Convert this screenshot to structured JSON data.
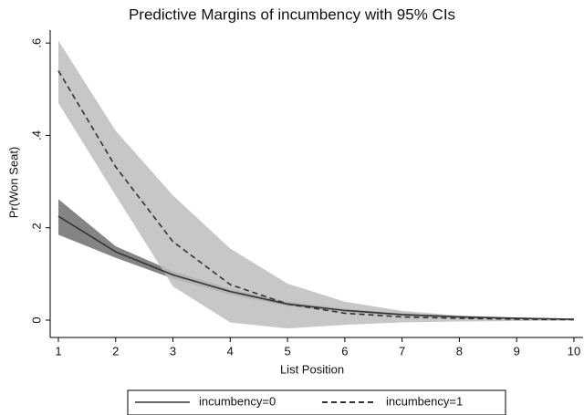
{
  "chart_data": {
    "type": "line",
    "title": "Predictive Margins of incumbency with 95% CIs",
    "x_label": "List Position",
    "y_label": "Pr(Won Seat)",
    "x": [
      1,
      2,
      3,
      4,
      5,
      6,
      7,
      8,
      9,
      10
    ],
    "series": [
      {
        "name": "incumbency=0",
        "color": "#333333",
        "legend_color": "#666666",
        "band_color": "#6e6e6e",
        "line_style": "solid",
        "values": [
          0.225,
          0.148,
          0.098,
          0.062,
          0.035,
          0.021,
          0.012,
          0.007,
          0.004,
          0.002
        ],
        "ci_lower": [
          0.185,
          0.135,
          0.09,
          0.055,
          0.03,
          0.017,
          0.009,
          0.005,
          0.003,
          0.001
        ],
        "ci_upper": [
          0.262,
          0.16,
          0.106,
          0.068,
          0.04,
          0.025,
          0.015,
          0.009,
          0.005,
          0.003
        ]
      },
      {
        "name": "incumbency=1",
        "color": "#333333",
        "legend_color": "#333333",
        "band_color": "#bdbdbd",
        "line_style": "dashed",
        "values": [
          0.54,
          0.332,
          0.17,
          0.077,
          0.035,
          0.015,
          0.007,
          0.004,
          0.002,
          0.001
        ],
        "ci_lower": [
          0.47,
          0.27,
          0.073,
          -0.005,
          -0.018,
          -0.01,
          -0.005,
          -0.003,
          -0.002,
          -0.001
        ],
        "ci_upper": [
          0.605,
          0.41,
          0.27,
          0.155,
          0.079,
          0.04,
          0.02,
          0.01,
          0.006,
          0.003
        ]
      }
    ],
    "xlim": [
      0.857,
      10.16
    ],
    "ylim": [
      -0.0375,
      0.628
    ],
    "xticks": [
      1,
      2,
      3,
      4,
      5,
      6,
      7,
      8,
      9,
      10
    ],
    "yticks": [
      0,
      {
        "value": 0.2,
        "label": ".2"
      },
      {
        "value": 0.4,
        "label": ".4"
      },
      {
        "value": 0.6,
        "label": ".6"
      }
    ],
    "grid": false,
    "legend_position": "bottom"
  }
}
